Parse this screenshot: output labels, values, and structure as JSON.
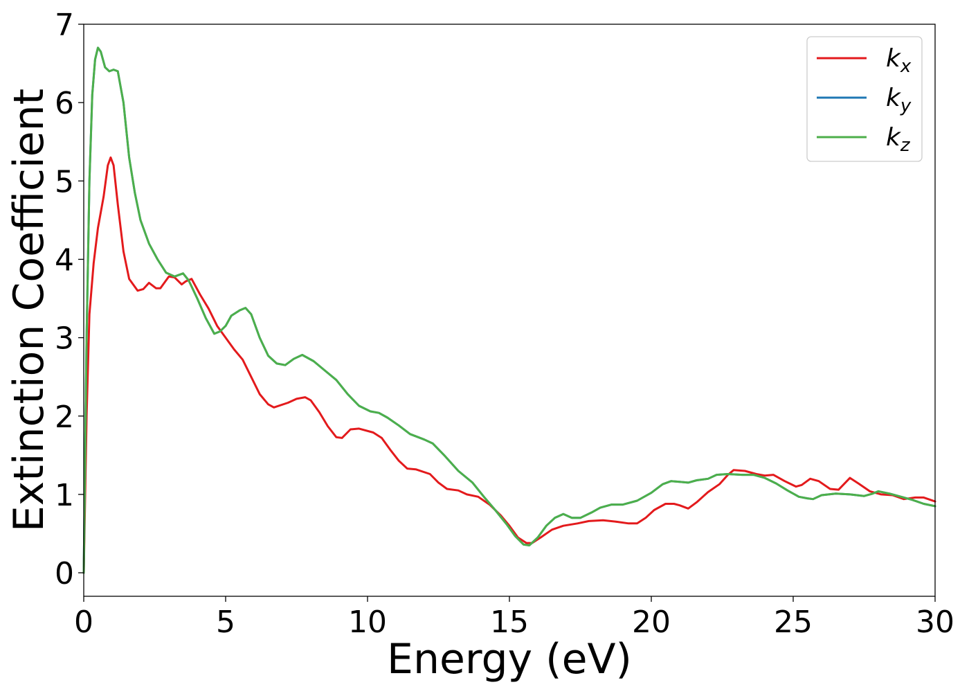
{
  "chart_data": {
    "type": "line",
    "title": "",
    "xlabel": "Energy (eV)",
    "ylabel": "Extinction Coefficient",
    "xlim": [
      0,
      30
    ],
    "ylim": [
      -0.3,
      7.0
    ],
    "xticks": [
      "0",
      "5",
      "10",
      "15",
      "20",
      "25",
      "30"
    ],
    "yticks": [
      "0",
      "1",
      "2",
      "3",
      "4",
      "5",
      "6",
      "7"
    ],
    "grid": false,
    "legend_position": "top-right",
    "series": [
      {
        "name": "kx",
        "base": "k",
        "sub": "x",
        "color": "#e31a1c",
        "points": [
          [
            0,
            0.0
          ],
          [
            0.1,
            2.0
          ],
          [
            0.2,
            3.3
          ],
          [
            0.35,
            3.95
          ],
          [
            0.5,
            4.4
          ],
          [
            0.7,
            4.8
          ],
          [
            0.85,
            5.2
          ],
          [
            0.95,
            5.3
          ],
          [
            1.05,
            5.2
          ],
          [
            1.2,
            4.7
          ],
          [
            1.4,
            4.1
          ],
          [
            1.6,
            3.75
          ],
          [
            1.9,
            3.6
          ],
          [
            2.1,
            3.62
          ],
          [
            2.3,
            3.7
          ],
          [
            2.55,
            3.63
          ],
          [
            2.7,
            3.63
          ],
          [
            3.0,
            3.78
          ],
          [
            3.2,
            3.77
          ],
          [
            3.45,
            3.68
          ],
          [
            3.6,
            3.72
          ],
          [
            3.8,
            3.75
          ],
          [
            4.1,
            3.55
          ],
          [
            4.4,
            3.37
          ],
          [
            4.7,
            3.15
          ],
          [
            5.0,
            3.0
          ],
          [
            5.3,
            2.85
          ],
          [
            5.6,
            2.72
          ],
          [
            5.9,
            2.5
          ],
          [
            6.2,
            2.28
          ],
          [
            6.5,
            2.15
          ],
          [
            6.7,
            2.11
          ],
          [
            7.2,
            2.17
          ],
          [
            7.5,
            2.22
          ],
          [
            7.8,
            2.24
          ],
          [
            8.0,
            2.2
          ],
          [
            8.3,
            2.05
          ],
          [
            8.6,
            1.87
          ],
          [
            8.9,
            1.73
          ],
          [
            9.1,
            1.72
          ],
          [
            9.4,
            1.83
          ],
          [
            9.7,
            1.84
          ],
          [
            10.2,
            1.79
          ],
          [
            10.5,
            1.72
          ],
          [
            10.8,
            1.57
          ],
          [
            11.1,
            1.43
          ],
          [
            11.4,
            1.33
          ],
          [
            11.7,
            1.32
          ],
          [
            12.2,
            1.26
          ],
          [
            12.5,
            1.15
          ],
          [
            12.8,
            1.07
          ],
          [
            13.2,
            1.05
          ],
          [
            13.5,
            1.0
          ],
          [
            13.9,
            0.97
          ],
          [
            14.3,
            0.87
          ],
          [
            14.7,
            0.73
          ],
          [
            15.0,
            0.6
          ],
          [
            15.3,
            0.45
          ],
          [
            15.6,
            0.38
          ],
          [
            15.8,
            0.38
          ],
          [
            16.1,
            0.45
          ],
          [
            16.5,
            0.55
          ],
          [
            16.9,
            0.6
          ],
          [
            17.4,
            0.63
          ],
          [
            17.8,
            0.66
          ],
          [
            18.3,
            0.67
          ],
          [
            18.8,
            0.65
          ],
          [
            19.2,
            0.63
          ],
          [
            19.5,
            0.63
          ],
          [
            19.8,
            0.7
          ],
          [
            20.1,
            0.8
          ],
          [
            20.5,
            0.88
          ],
          [
            20.8,
            0.88
          ],
          [
            21.0,
            0.86
          ],
          [
            21.3,
            0.82
          ],
          [
            21.6,
            0.9
          ],
          [
            22.0,
            1.03
          ],
          [
            22.4,
            1.13
          ],
          [
            22.7,
            1.25
          ],
          [
            22.9,
            1.31
          ],
          [
            23.3,
            1.3
          ],
          [
            23.7,
            1.26
          ],
          [
            24.0,
            1.24
          ],
          [
            24.3,
            1.25
          ],
          [
            24.7,
            1.17
          ],
          [
            25.1,
            1.1
          ],
          [
            25.3,
            1.12
          ],
          [
            25.6,
            1.2
          ],
          [
            25.9,
            1.17
          ],
          [
            26.3,
            1.07
          ],
          [
            26.6,
            1.06
          ],
          [
            27.0,
            1.21
          ],
          [
            27.3,
            1.14
          ],
          [
            27.7,
            1.04
          ],
          [
            28.1,
            1.0
          ],
          [
            28.5,
            0.99
          ],
          [
            28.9,
            0.94
          ],
          [
            29.3,
            0.96
          ],
          [
            29.6,
            0.96
          ],
          [
            30.0,
            0.91
          ]
        ]
      },
      {
        "name": "ky",
        "base": "k",
        "sub": "y",
        "color": "#1f78b4",
        "points": [
          [
            0,
            0.0
          ],
          [
            0.1,
            3.0
          ],
          [
            0.2,
            5.0
          ],
          [
            0.3,
            6.1
          ],
          [
            0.4,
            6.55
          ],
          [
            0.5,
            6.7
          ],
          [
            0.6,
            6.65
          ],
          [
            0.75,
            6.45
          ],
          [
            0.9,
            6.4
          ],
          [
            1.05,
            6.42
          ],
          [
            1.2,
            6.4
          ],
          [
            1.4,
            6.0
          ],
          [
            1.6,
            5.3
          ],
          [
            1.8,
            4.85
          ],
          [
            2.0,
            4.5
          ],
          [
            2.3,
            4.2
          ],
          [
            2.6,
            4.0
          ],
          [
            2.9,
            3.83
          ],
          [
            3.2,
            3.78
          ],
          [
            3.5,
            3.82
          ],
          [
            3.7,
            3.73
          ],
          [
            4.0,
            3.5
          ],
          [
            4.3,
            3.25
          ],
          [
            4.6,
            3.05
          ],
          [
            4.8,
            3.08
          ],
          [
            5.0,
            3.15
          ],
          [
            5.2,
            3.28
          ],
          [
            5.5,
            3.35
          ],
          [
            5.7,
            3.38
          ],
          [
            5.9,
            3.3
          ],
          [
            6.2,
            3.0
          ],
          [
            6.5,
            2.77
          ],
          [
            6.8,
            2.67
          ],
          [
            7.1,
            2.65
          ],
          [
            7.4,
            2.73
          ],
          [
            7.7,
            2.78
          ],
          [
            8.1,
            2.7
          ],
          [
            8.5,
            2.58
          ],
          [
            8.9,
            2.46
          ],
          [
            9.3,
            2.28
          ],
          [
            9.7,
            2.13
          ],
          [
            10.1,
            2.06
          ],
          [
            10.4,
            2.04
          ],
          [
            10.7,
            1.98
          ],
          [
            11.1,
            1.88
          ],
          [
            11.5,
            1.77
          ],
          [
            12.0,
            1.7
          ],
          [
            12.3,
            1.65
          ],
          [
            12.7,
            1.5
          ],
          [
            13.2,
            1.3
          ],
          [
            13.7,
            1.15
          ],
          [
            14.1,
            0.97
          ],
          [
            14.5,
            0.8
          ],
          [
            14.9,
            0.62
          ],
          [
            15.2,
            0.47
          ],
          [
            15.5,
            0.36
          ],
          [
            15.7,
            0.35
          ],
          [
            16.0,
            0.45
          ],
          [
            16.3,
            0.6
          ],
          [
            16.6,
            0.7
          ],
          [
            16.9,
            0.75
          ],
          [
            17.2,
            0.7
          ],
          [
            17.5,
            0.7
          ],
          [
            17.9,
            0.77
          ],
          [
            18.2,
            0.83
          ],
          [
            18.6,
            0.87
          ],
          [
            19.0,
            0.87
          ],
          [
            19.5,
            0.92
          ],
          [
            20.0,
            1.02
          ],
          [
            20.4,
            1.13
          ],
          [
            20.7,
            1.17
          ],
          [
            21.0,
            1.16
          ],
          [
            21.3,
            1.15
          ],
          [
            21.6,
            1.18
          ],
          [
            22.0,
            1.2
          ],
          [
            22.3,
            1.25
          ],
          [
            22.7,
            1.26
          ],
          [
            23.2,
            1.25
          ],
          [
            23.6,
            1.25
          ],
          [
            24.0,
            1.21
          ],
          [
            24.4,
            1.14
          ],
          [
            24.8,
            1.05
          ],
          [
            25.2,
            0.97
          ],
          [
            25.5,
            0.95
          ],
          [
            25.7,
            0.94
          ],
          [
            26.0,
            0.99
          ],
          [
            26.5,
            1.01
          ],
          [
            27.0,
            1.0
          ],
          [
            27.5,
            0.98
          ],
          [
            27.8,
            1.01
          ],
          [
            28.0,
            1.04
          ],
          [
            28.4,
            1.01
          ],
          [
            28.8,
            0.97
          ],
          [
            29.2,
            0.93
          ],
          [
            29.6,
            0.88
          ],
          [
            30.0,
            0.85
          ]
        ]
      },
      {
        "name": "kz",
        "base": "k",
        "sub": "z",
        "color": "#4daf4a",
        "points": [
          [
            0,
            0.0
          ],
          [
            0.1,
            3.0
          ],
          [
            0.2,
            5.0
          ],
          [
            0.3,
            6.1
          ],
          [
            0.4,
            6.55
          ],
          [
            0.5,
            6.7
          ],
          [
            0.6,
            6.65
          ],
          [
            0.75,
            6.45
          ],
          [
            0.9,
            6.4
          ],
          [
            1.05,
            6.42
          ],
          [
            1.2,
            6.4
          ],
          [
            1.4,
            6.0
          ],
          [
            1.6,
            5.3
          ],
          [
            1.8,
            4.85
          ],
          [
            2.0,
            4.5
          ],
          [
            2.3,
            4.2
          ],
          [
            2.6,
            4.0
          ],
          [
            2.9,
            3.83
          ],
          [
            3.2,
            3.78
          ],
          [
            3.5,
            3.82
          ],
          [
            3.7,
            3.73
          ],
          [
            4.0,
            3.5
          ],
          [
            4.3,
            3.25
          ],
          [
            4.6,
            3.05
          ],
          [
            4.8,
            3.08
          ],
          [
            5.0,
            3.15
          ],
          [
            5.2,
            3.28
          ],
          [
            5.5,
            3.35
          ],
          [
            5.7,
            3.38
          ],
          [
            5.9,
            3.3
          ],
          [
            6.2,
            3.0
          ],
          [
            6.5,
            2.77
          ],
          [
            6.8,
            2.67
          ],
          [
            7.1,
            2.65
          ],
          [
            7.4,
            2.73
          ],
          [
            7.7,
            2.78
          ],
          [
            8.1,
            2.7
          ],
          [
            8.5,
            2.58
          ],
          [
            8.9,
            2.46
          ],
          [
            9.3,
            2.28
          ],
          [
            9.7,
            2.13
          ],
          [
            10.1,
            2.06
          ],
          [
            10.4,
            2.04
          ],
          [
            10.7,
            1.98
          ],
          [
            11.1,
            1.88
          ],
          [
            11.5,
            1.77
          ],
          [
            12.0,
            1.7
          ],
          [
            12.3,
            1.65
          ],
          [
            12.7,
            1.5
          ],
          [
            13.2,
            1.3
          ],
          [
            13.7,
            1.15
          ],
          [
            14.1,
            0.97
          ],
          [
            14.5,
            0.8
          ],
          [
            14.9,
            0.62
          ],
          [
            15.2,
            0.47
          ],
          [
            15.5,
            0.36
          ],
          [
            15.7,
            0.35
          ],
          [
            16.0,
            0.45
          ],
          [
            16.3,
            0.6
          ],
          [
            16.6,
            0.7
          ],
          [
            16.9,
            0.75
          ],
          [
            17.2,
            0.7
          ],
          [
            17.5,
            0.7
          ],
          [
            17.9,
            0.77
          ],
          [
            18.2,
            0.83
          ],
          [
            18.6,
            0.87
          ],
          [
            19.0,
            0.87
          ],
          [
            19.5,
            0.92
          ],
          [
            20.0,
            1.02
          ],
          [
            20.4,
            1.13
          ],
          [
            20.7,
            1.17
          ],
          [
            21.0,
            1.16
          ],
          [
            21.3,
            1.15
          ],
          [
            21.6,
            1.18
          ],
          [
            22.0,
            1.2
          ],
          [
            22.3,
            1.25
          ],
          [
            22.7,
            1.26
          ],
          [
            23.2,
            1.25
          ],
          [
            23.6,
            1.25
          ],
          [
            24.0,
            1.21
          ],
          [
            24.4,
            1.14
          ],
          [
            24.8,
            1.05
          ],
          [
            25.2,
            0.97
          ],
          [
            25.5,
            0.95
          ],
          [
            25.7,
            0.94
          ],
          [
            26.0,
            0.99
          ],
          [
            26.5,
            1.01
          ],
          [
            27.0,
            1.0
          ],
          [
            27.5,
            0.98
          ],
          [
            27.8,
            1.01
          ],
          [
            28.0,
            1.04
          ],
          [
            28.4,
            1.01
          ],
          [
            28.8,
            0.97
          ],
          [
            29.2,
            0.93
          ],
          [
            29.6,
            0.88
          ],
          [
            30.0,
            0.85
          ]
        ]
      }
    ]
  }
}
